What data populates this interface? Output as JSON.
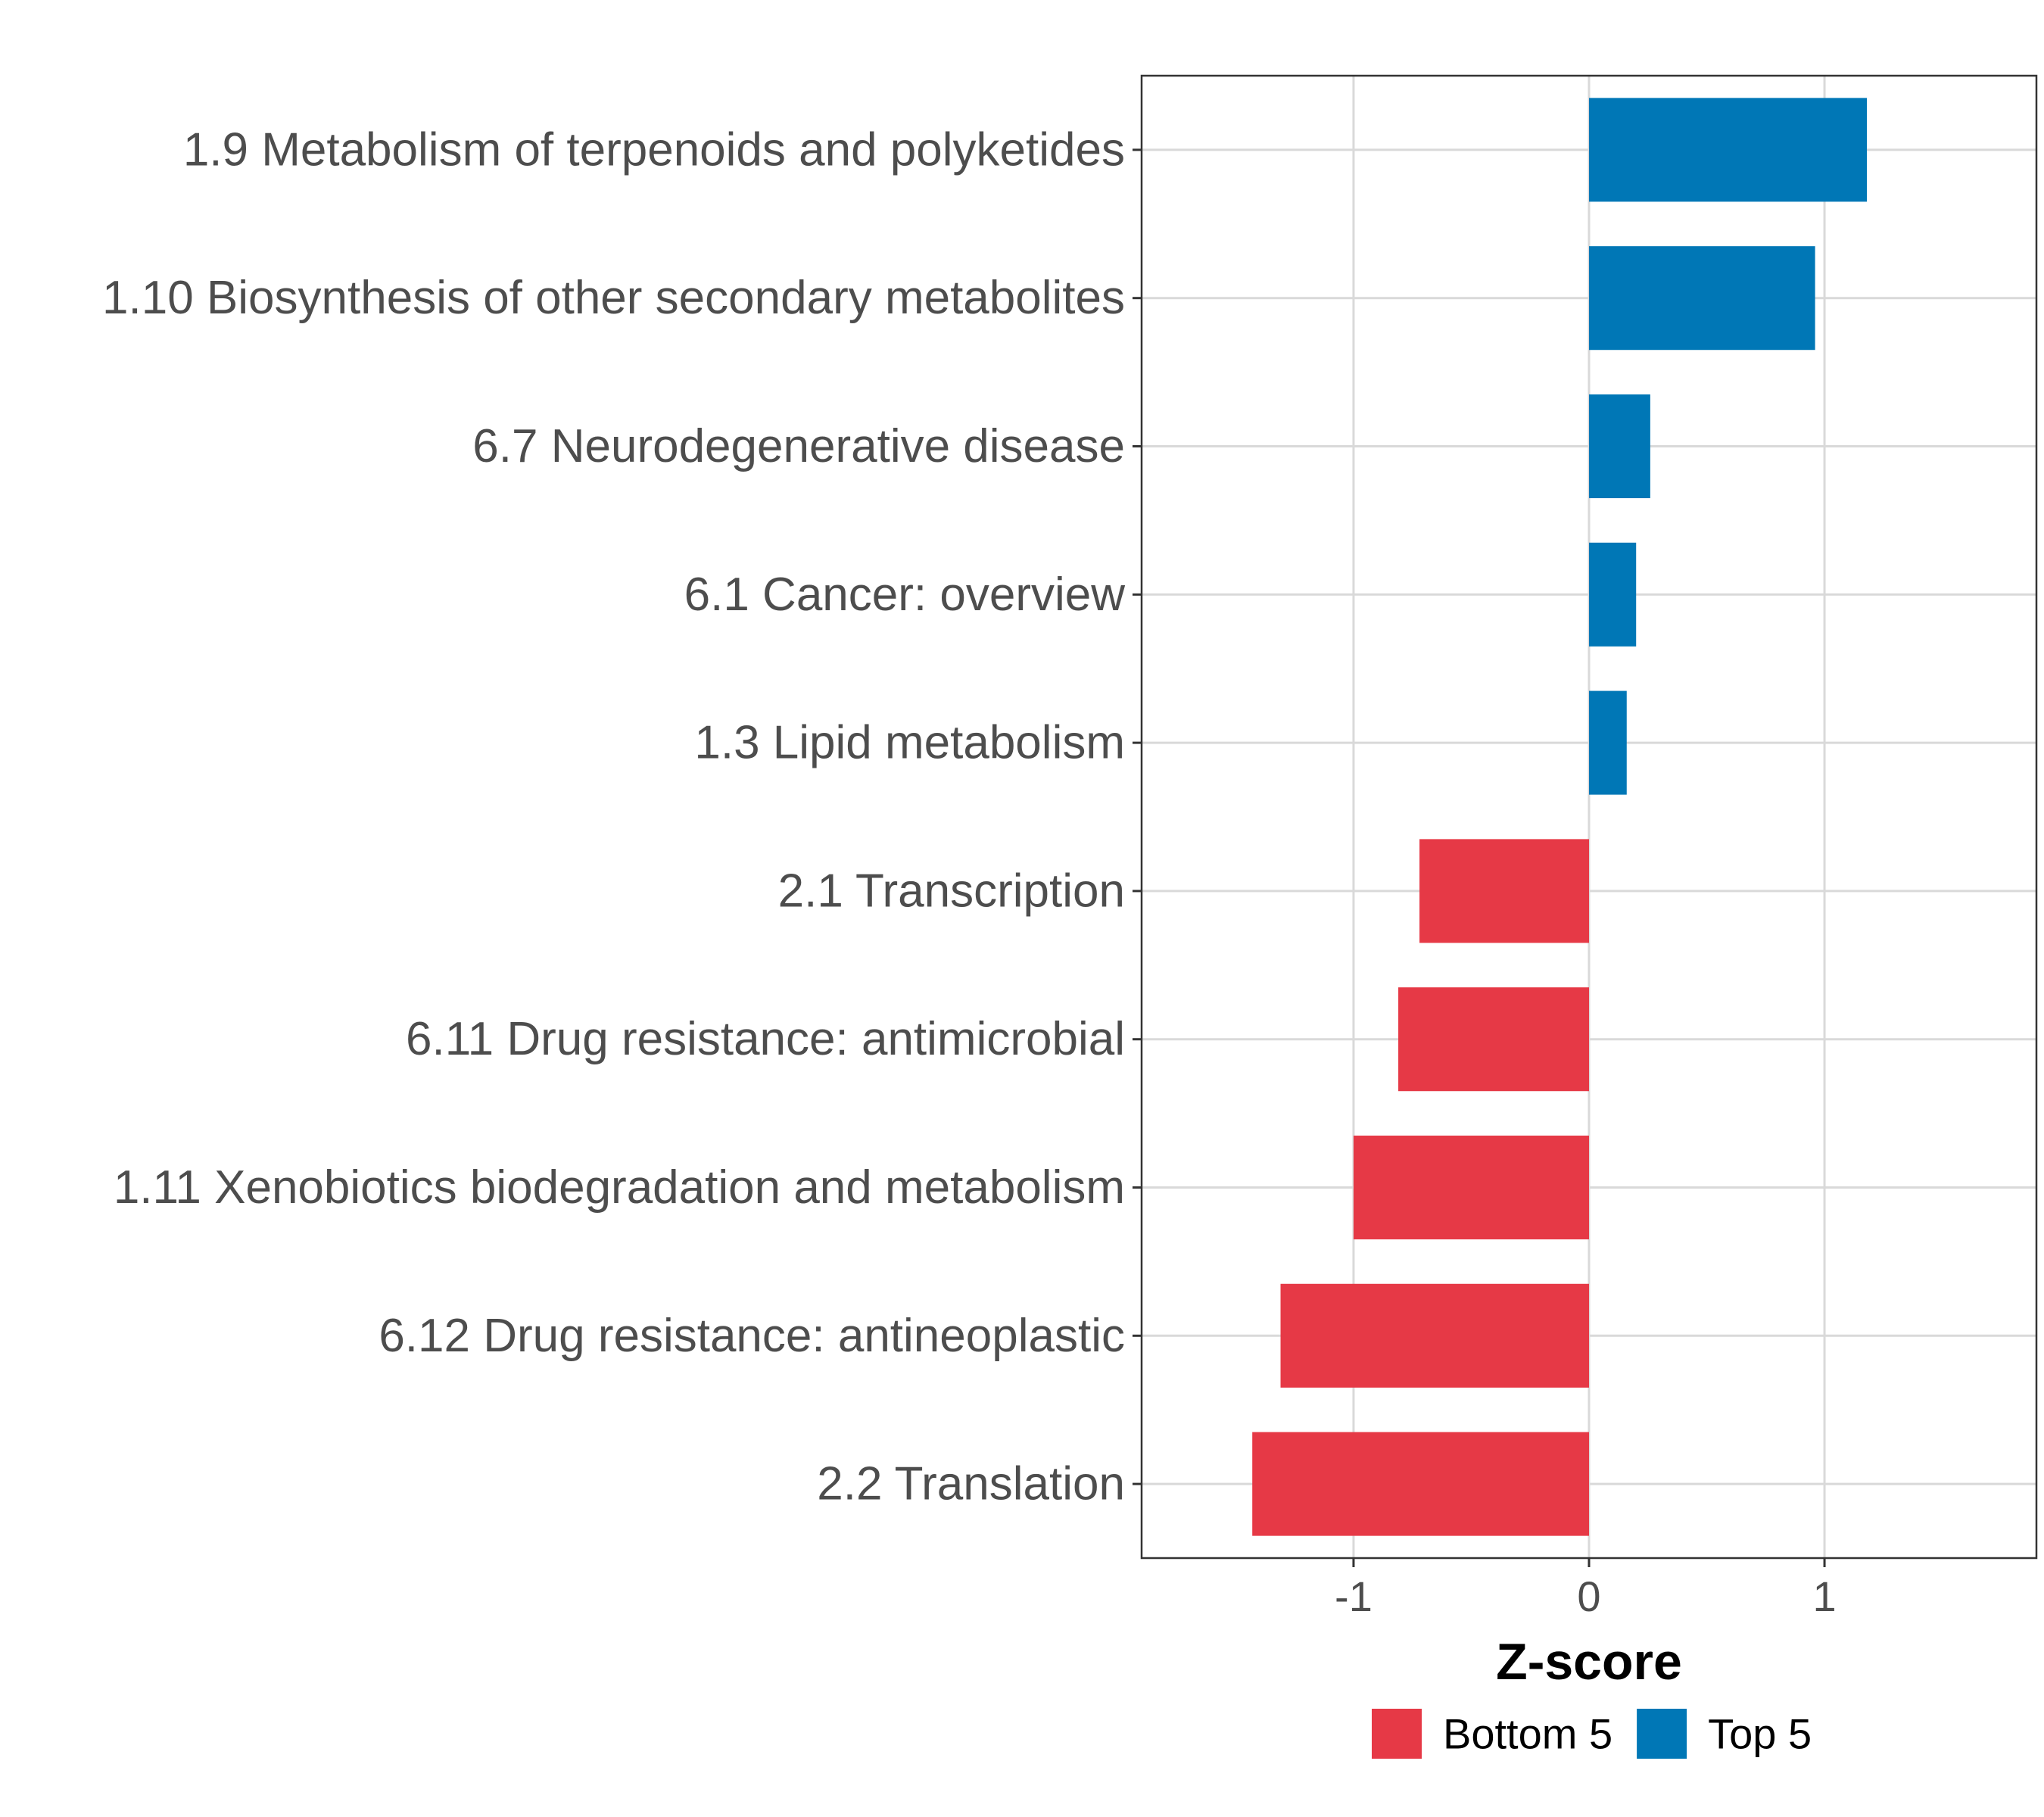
{
  "chart_data": {
    "type": "bar",
    "orientation": "horizontal",
    "title": "",
    "xlabel": "Z-score",
    "ylabel": "",
    "xlim": [
      -1.9,
      1.9
    ],
    "xticks": [
      -1,
      0,
      1
    ],
    "xtick_labels": [
      "-1",
      "0",
      "1"
    ],
    "grid": true,
    "legend_position": "bottom",
    "categories": [
      "1.9 Metabolism of terpenoids and polyketides",
      "1.10 Biosynthesis of other secondary metabolites",
      "6.7 Neurodegenerative disease",
      "6.1 Cancer: overview",
      "1.3 Lipid metabolism",
      "2.1 Transcription",
      "6.11 Drug resistance: antimicrobial",
      "1.11 Xenobiotics biodegradation and metabolism",
      "6.12 Drug resistance: antineoplastic",
      "2.2 Translation"
    ],
    "values": [
      1.18,
      0.96,
      0.26,
      0.2,
      0.16,
      -0.72,
      -0.81,
      -1.0,
      -1.31,
      -1.43
    ],
    "groups": [
      "Top 5",
      "Top 5",
      "Top 5",
      "Top 5",
      "Top 5",
      "Bottom 5",
      "Bottom 5",
      "Bottom 5",
      "Bottom 5",
      "Bottom 5"
    ],
    "legend": [
      {
        "name": "Bottom 5",
        "color": "#e63946"
      },
      {
        "name": "Top 5",
        "color": "#0077b6"
      }
    ]
  },
  "colors": {
    "Top 5": "#0077b6",
    "Bottom 5": "#e63946",
    "grid": "#d9d9d9",
    "panel_border": "#333333",
    "tick_text": "#4d4d4d"
  }
}
